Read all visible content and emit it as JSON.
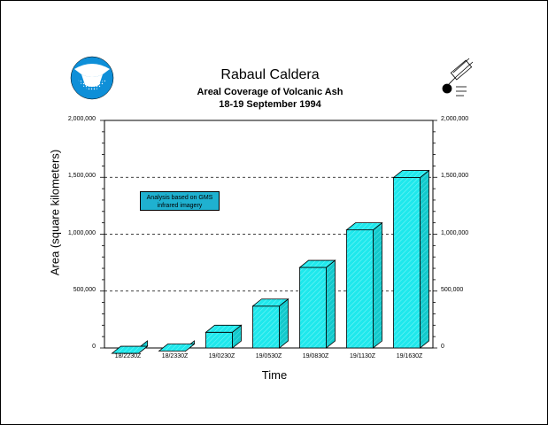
{
  "chart_data": {
    "type": "bar",
    "title": "Rabaul Caldera",
    "subtitle": "Areal Coverage of Volcanic Ash",
    "subtitle2": "18-19 September 1994",
    "xlabel": "Time",
    "ylabel": "Area (square kilometers)",
    "ylim": [
      0,
      2000000
    ],
    "yticks": [
      "0",
      "500,000",
      "1,000,000",
      "1,500,000",
      "2,000,000"
    ],
    "categories": [
      "18/2230Z",
      "18/2330Z",
      "19/0230Z",
      "19/0530Z",
      "19/0830Z",
      "19/1130Z",
      "19/1630Z"
    ],
    "values": [
      15000,
      35000,
      200000,
      430000,
      770000,
      1100000,
      1560000
    ],
    "annotation": "Analysis based on GMS infrared imagery",
    "grid": "dashed horizontal at 500,000 intervals",
    "bar_color": "#1fe8ec"
  },
  "logos": {
    "left": "noaa-logo",
    "right": "satellite-logo"
  }
}
